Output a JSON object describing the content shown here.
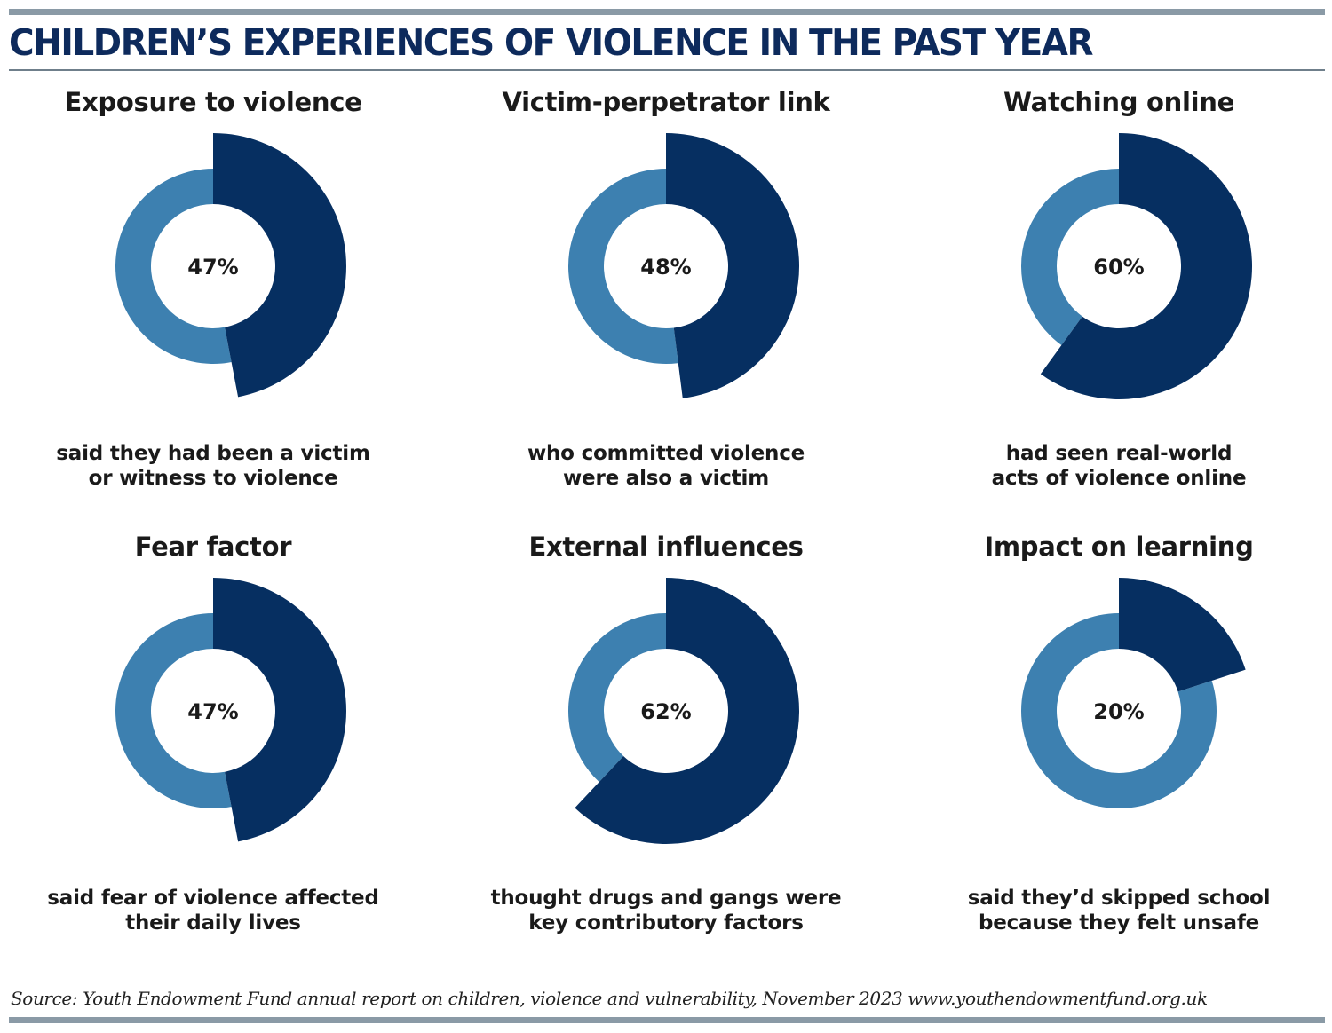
{
  "header": {
    "title": "CHILDREN’S EXPERIENCES OF VIOLENCE IN THE PAST YEAR"
  },
  "colors": {
    "highlight": "#062f61",
    "remainder": "#3d80b0",
    "title": "#0d2a5c"
  },
  "chart_data": [
    {
      "type": "pie",
      "title": "Exposure to violence",
      "value": 47,
      "label": "47%",
      "caption": [
        "said they had been a victim",
        "or witness to violence"
      ]
    },
    {
      "type": "pie",
      "title": "Victim-perpetrator link",
      "value": 48,
      "label": "48%",
      "caption": [
        "who committed violence",
        "were also a victim"
      ]
    },
    {
      "type": "pie",
      "title": "Watching online",
      "value": 60,
      "label": "60%",
      "caption": [
        "had seen real-world",
        "acts of violence online"
      ]
    },
    {
      "type": "pie",
      "title": "Fear factor",
      "value": 47,
      "label": "47%",
      "caption": [
        "said fear of violence affected",
        "their daily lives"
      ]
    },
    {
      "type": "pie",
      "title": "External influences",
      "value": 62,
      "label": "62%",
      "caption": [
        "thought drugs and gangs were",
        "key contributory factors"
      ]
    },
    {
      "type": "pie",
      "title": "Impact on learning",
      "value": 20,
      "label": "20%",
      "caption": [
        "said they’d skipped school",
        "because they felt unsafe"
      ]
    }
  ],
  "footer": {
    "source": "Source: Youth Endowment Fund annual report on children, violence and vulnerability, November 2023 www.youthendowmentfund.org.uk"
  }
}
